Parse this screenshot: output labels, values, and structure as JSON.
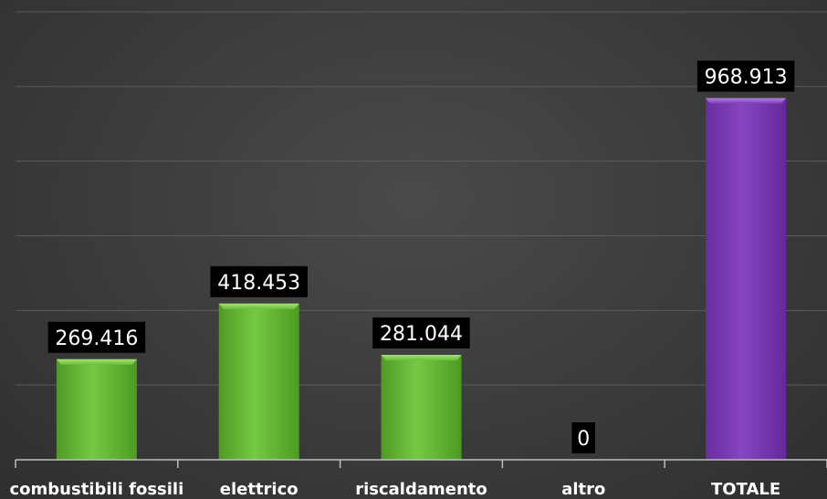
{
  "chart_data": {
    "type": "bar",
    "categories": [
      "combustibili fossili",
      "elettrico",
      "riscaldamento",
      "altro",
      "TOTALE"
    ],
    "values": [
      269.416,
      418.453,
      281.044,
      0,
      968.913
    ],
    "value_labels": [
      "269.416",
      "418.453",
      "281.044",
      "0",
      "968.913"
    ],
    "title": "",
    "xlabel": "",
    "ylabel": "",
    "ylim": [
      0,
      1200
    ],
    "grid": true,
    "legend": "none",
    "colors": {
      "bars": [
        "#6abf3a",
        "#6abf3a",
        "#6abf3a",
        "#6abf3a",
        "#7e3fb6"
      ],
      "label_box": "#000000",
      "gridline": "#5c5c5c",
      "axis": "#bfbfbf"
    }
  }
}
